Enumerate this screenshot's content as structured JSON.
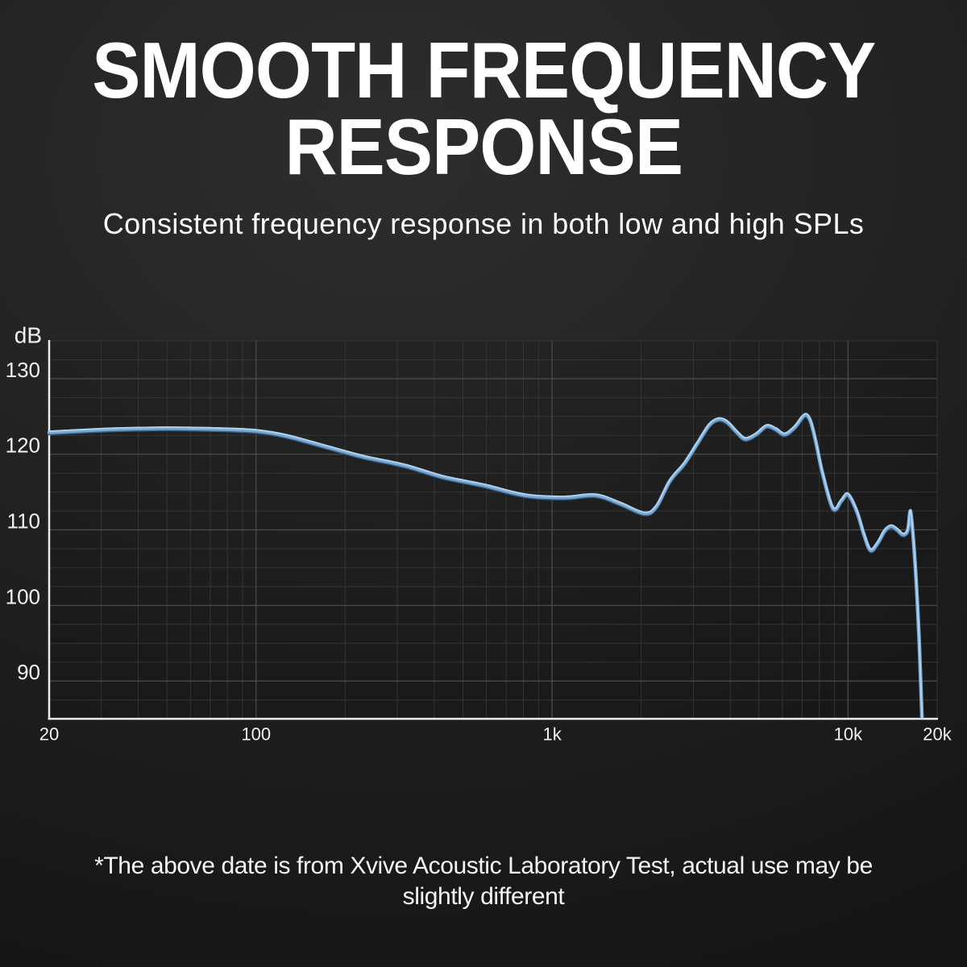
{
  "header": {
    "title_line1": "SMOOTH FREQUENCY",
    "title_line2": "RESPONSE",
    "subtitle": "Consistent frequency response in both low and high SPLs"
  },
  "footer": {
    "line1": "*The above date is from Xvive Acoustic Laboratory Test, actual use may be",
    "line2": "slightly different"
  },
  "colors": {
    "background_light": "#2d2d2d",
    "background_dark": "#101010",
    "text": "#ffffff",
    "axis": "#ececec",
    "grid_minor": "#343434",
    "grid_major": "#4e4e4e",
    "curve_main": "#7aa9d4",
    "curve_highlight": "#b4d4ec",
    "curve_shadow": "#3a6490"
  },
  "chart_data": {
    "type": "line",
    "ylabel": "dB",
    "xlabel": "",
    "x_scale": "log",
    "x_range_hz": [
      20,
      20000
    ],
    "y_axis_top_db": 135,
    "y_axis_bottom_db": 85,
    "minor_grid_db_step": 2.5,
    "grid": "on",
    "x_ticks": [
      {
        "hz": 20,
        "label": "20"
      },
      {
        "hz": 100,
        "label": "100"
      },
      {
        "hz": 1000,
        "label": "1k"
      },
      {
        "hz": 10000,
        "label": "10k"
      },
      {
        "hz": 20000,
        "label": "20k"
      }
    ],
    "y_ticks": [
      {
        "db": 130,
        "label": "130"
      },
      {
        "db": 120,
        "label": "120"
      },
      {
        "db": 110,
        "label": "110"
      },
      {
        "db": 100,
        "label": "100"
      },
      {
        "db": 90,
        "label": "90"
      }
    ],
    "x_major_grid_hz": [
      100,
      1000,
      10000
    ],
    "series": [
      {
        "name": "SPL frequency response",
        "points_hz_db": [
          [
            20,
            122.9
          ],
          [
            25,
            123.1
          ],
          [
            32,
            123.3
          ],
          [
            40,
            123.4
          ],
          [
            50,
            123.45
          ],
          [
            63,
            123.4
          ],
          [
            80,
            123.3
          ],
          [
            100,
            123.1
          ],
          [
            125,
            122.5
          ],
          [
            170,
            121.1
          ],
          [
            230,
            119.7
          ],
          [
            320,
            118.5
          ],
          [
            430,
            117.0
          ],
          [
            590,
            115.9
          ],
          [
            810,
            114.6
          ],
          [
            1100,
            114.3
          ],
          [
            1400,
            114.6
          ],
          [
            1700,
            113.5
          ],
          [
            2050,
            112.2
          ],
          [
            2250,
            113.1
          ],
          [
            2500,
            116.5
          ],
          [
            2800,
            118.8
          ],
          [
            3100,
            121.5
          ],
          [
            3400,
            123.9
          ],
          [
            3650,
            124.65
          ],
          [
            3900,
            124.3
          ],
          [
            4200,
            123.0
          ],
          [
            4500,
            122.05
          ],
          [
            4900,
            122.7
          ],
          [
            5300,
            123.75
          ],
          [
            5700,
            123.35
          ],
          [
            6100,
            122.65
          ],
          [
            6600,
            123.6
          ],
          [
            7000,
            124.9
          ],
          [
            7250,
            125.2
          ],
          [
            7500,
            124.2
          ],
          [
            7800,
            121.5
          ],
          [
            8200,
            117.5
          ],
          [
            8900,
            112.85
          ],
          [
            9500,
            113.9
          ],
          [
            10000,
            114.7
          ],
          [
            10700,
            112.5
          ],
          [
            11300,
            109.5
          ],
          [
            11900,
            107.35
          ],
          [
            12600,
            108.3
          ],
          [
            13300,
            109.9
          ],
          [
            14000,
            110.5
          ],
          [
            14700,
            110.0
          ],
          [
            15300,
            109.4
          ],
          [
            15800,
            109.7
          ],
          [
            16000,
            110.6
          ],
          [
            16250,
            112.5
          ],
          [
            16600,
            109.0
          ],
          [
            17000,
            103.0
          ],
          [
            17400,
            95.0
          ],
          [
            17800,
            84.3
          ]
        ]
      }
    ]
  }
}
